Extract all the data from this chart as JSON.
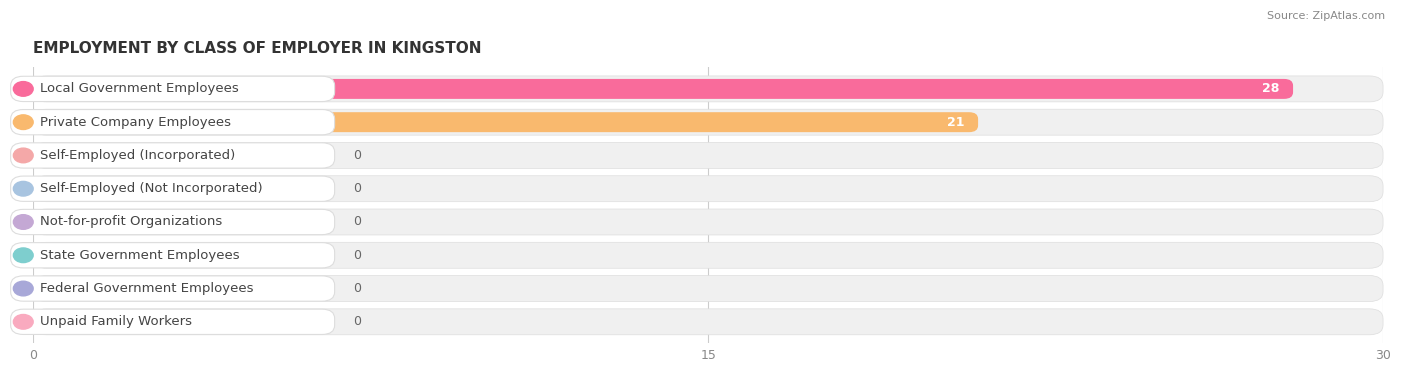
{
  "title": "EMPLOYMENT BY CLASS OF EMPLOYER IN KINGSTON",
  "source": "Source: ZipAtlas.com",
  "categories": [
    "Local Government Employees",
    "Private Company Employees",
    "Self-Employed (Incorporated)",
    "Self-Employed (Not Incorporated)",
    "Not-for-profit Organizations",
    "State Government Employees",
    "Federal Government Employees",
    "Unpaid Family Workers"
  ],
  "values": [
    28,
    21,
    0,
    0,
    0,
    0,
    0,
    0
  ],
  "bar_colors": [
    "#F96B9B",
    "#F9B96E",
    "#F4A8A8",
    "#A8C4E0",
    "#C4A8D4",
    "#7ECECE",
    "#A8A8D8",
    "#F9AABF"
  ],
  "xlim": [
    0,
    30
  ],
  "xticks": [
    0,
    15,
    30
  ],
  "title_fontsize": 11,
  "source_fontsize": 8,
  "label_fontsize": 9.5,
  "value_fontsize": 9
}
